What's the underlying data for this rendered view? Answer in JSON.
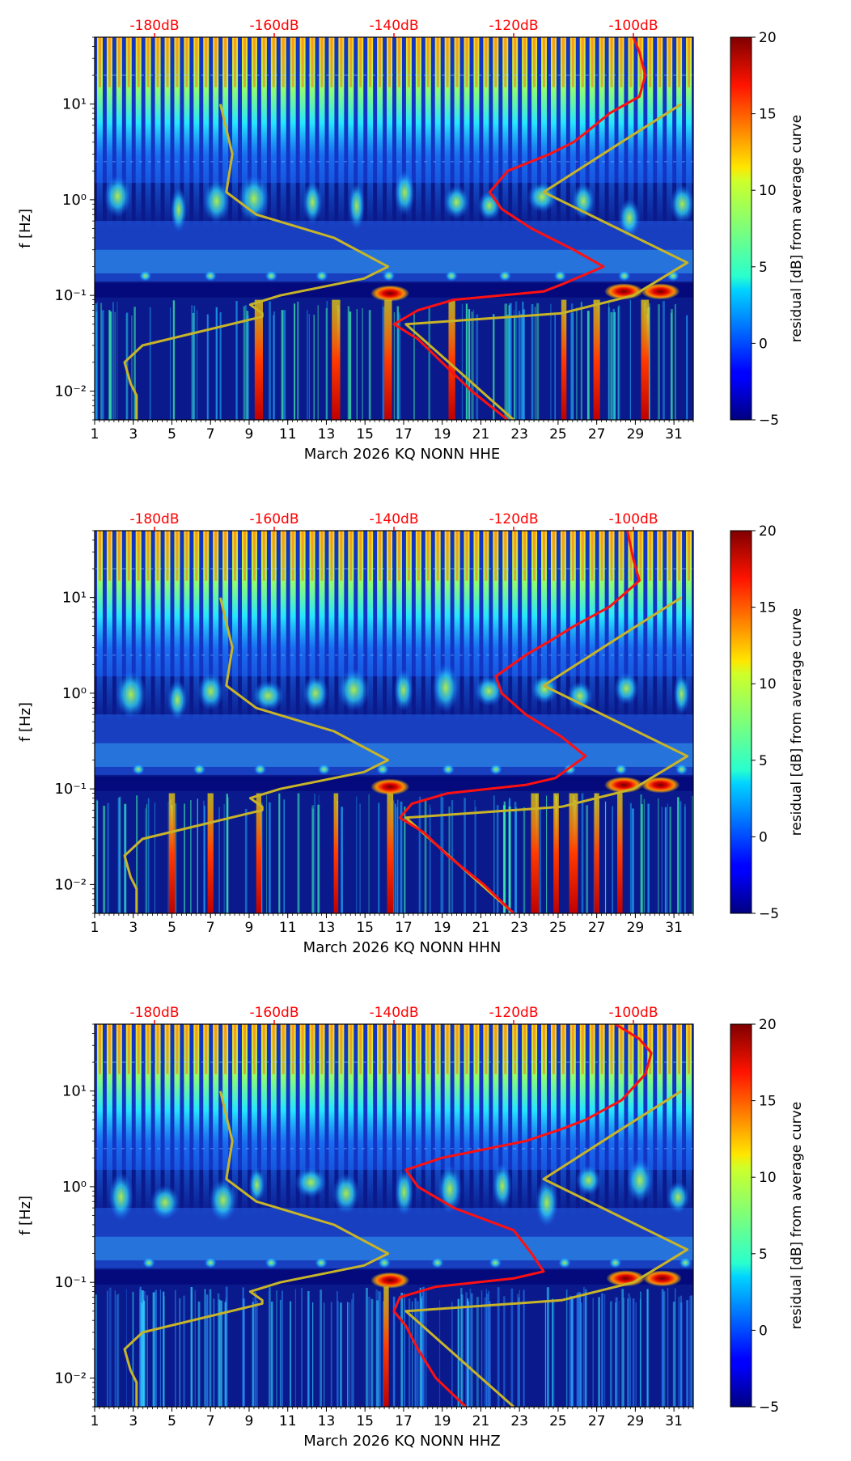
{
  "chart_data": [
    {
      "type": "heatmap",
      "title": "",
      "xlabel": "March 2026 KQ NONN  HHE",
      "ylabel": "f [Hz]",
      "x_ticks": [
        "1",
        "3",
        "5",
        "7",
        "9",
        "11",
        "13",
        "15",
        "17",
        "19",
        "21",
        "23",
        "25",
        "27",
        "29",
        "31"
      ],
      "x_range_days": [
        1,
        32
      ],
      "y_range_hz": [
        0.005,
        50
      ],
      "y_ticks": [
        {
          "value": 0.01,
          "label": "10⁻²"
        },
        {
          "value": 0.1,
          "label": "10⁻¹"
        },
        {
          "value": 1,
          "label": "10⁰"
        },
        {
          "value": 10,
          "label": "10¹"
        }
      ],
      "top_axis_labels": [
        "-180dB",
        "-160dB",
        "-140dB",
        "-120dB",
        "-100dB"
      ],
      "top_axis_db_range": [
        -190,
        -90
      ],
      "colorbar": {
        "label": "residual [dB] from average curve",
        "range": [
          -5,
          20
        ],
        "ticks": [
          "−5",
          "0",
          "5",
          "10",
          "15",
          "20"
        ]
      },
      "low_noise_model": [
        [
          0.005,
          -183
        ],
        [
          0.009,
          -183
        ],
        [
          0.012,
          -184
        ],
        [
          0.02,
          -185
        ],
        [
          0.03,
          -182
        ],
        [
          0.06,
          -162
        ],
        [
          0.065,
          -162
        ],
        [
          0.08,
          -164
        ],
        [
          0.1,
          -159
        ],
        [
          0.15,
          -145
        ],
        [
          0.2,
          -141
        ],
        [
          0.4,
          -150
        ],
        [
          0.7,
          -163
        ],
        [
          1.2,
          -168
        ],
        [
          3,
          -167
        ],
        [
          10,
          -169
        ]
      ],
      "high_noise_model": [
        [
          0.005,
          -120
        ],
        [
          0.05,
          -138
        ],
        [
          0.065,
          -112
        ],
        [
          0.1,
          -100
        ],
        [
          0.22,
          -91
        ],
        [
          1.2,
          -115
        ],
        [
          4,
          -102
        ],
        [
          10,
          -92
        ]
      ],
      "mean_psd_curve": [
        [
          0.005,
          -121
        ],
        [
          0.01,
          -127
        ],
        [
          0.02,
          -132
        ],
        [
          0.035,
          -136
        ],
        [
          0.05,
          -140
        ],
        [
          0.07,
          -136
        ],
        [
          0.09,
          -130
        ],
        [
          0.11,
          -115
        ],
        [
          0.13,
          -112
        ],
        [
          0.2,
          -105
        ],
        [
          0.3,
          -110
        ],
        [
          0.5,
          -117
        ],
        [
          0.8,
          -122
        ],
        [
          1.2,
          -124
        ],
        [
          2,
          -121
        ],
        [
          3,
          -114
        ],
        [
          4,
          -110
        ],
        [
          5,
          -108
        ],
        [
          8,
          -104
        ],
        [
          12,
          -99
        ],
        [
          20,
          -98
        ],
        [
          35,
          -99
        ],
        [
          50,
          -100
        ]
      ],
      "bright_blobs": [
        {
          "day": 16.3,
          "freq_hz": 0.105
        },
        {
          "day": 28.4,
          "freq_hz": 0.11
        },
        {
          "day": 30.3,
          "freq_hz": 0.11
        }
      ],
      "strong_lf_days": [
        9.5,
        13.5,
        16.2,
        19.5,
        25.3,
        27,
        29.5
      ]
    },
    {
      "type": "heatmap",
      "title": "",
      "xlabel": "March 2026 KQ NONN  HHN",
      "ylabel": "f [Hz]",
      "x_ticks": [
        "1",
        "3",
        "5",
        "7",
        "9",
        "11",
        "13",
        "15",
        "17",
        "19",
        "21",
        "23",
        "25",
        "27",
        "29",
        "31"
      ],
      "x_range_days": [
        1,
        32
      ],
      "y_range_hz": [
        0.005,
        50
      ],
      "y_ticks": [
        {
          "value": 0.01,
          "label": "10⁻²"
        },
        {
          "value": 0.1,
          "label": "10⁻¹"
        },
        {
          "value": 1,
          "label": "10⁰"
        },
        {
          "value": 10,
          "label": "10¹"
        }
      ],
      "top_axis_labels": [
        "-180dB",
        "-160dB",
        "-140dB",
        "-120dB",
        "-100dB"
      ],
      "top_axis_db_range": [
        -190,
        -90
      ],
      "colorbar": {
        "label": "residual [dB] from average curve",
        "range": [
          -5,
          20
        ],
        "ticks": [
          "−5",
          "0",
          "5",
          "10",
          "15",
          "20"
        ]
      },
      "low_noise_model": [
        [
          0.005,
          -183
        ],
        [
          0.009,
          -183
        ],
        [
          0.012,
          -184
        ],
        [
          0.02,
          -185
        ],
        [
          0.03,
          -182
        ],
        [
          0.06,
          -162
        ],
        [
          0.065,
          -162
        ],
        [
          0.08,
          -164
        ],
        [
          0.1,
          -159
        ],
        [
          0.15,
          -145
        ],
        [
          0.2,
          -141
        ],
        [
          0.4,
          -150
        ],
        [
          0.7,
          -163
        ],
        [
          1.2,
          -168
        ],
        [
          3,
          -167
        ],
        [
          10,
          -169
        ]
      ],
      "high_noise_model": [
        [
          0.005,
          -120
        ],
        [
          0.05,
          -138
        ],
        [
          0.065,
          -112
        ],
        [
          0.1,
          -100
        ],
        [
          0.22,
          -91
        ],
        [
          1.2,
          -115
        ],
        [
          4,
          -102
        ],
        [
          10,
          -92
        ]
      ],
      "mean_psd_curve": [
        [
          0.005,
          -120
        ],
        [
          0.01,
          -125
        ],
        [
          0.02,
          -131
        ],
        [
          0.035,
          -135
        ],
        [
          0.05,
          -139
        ],
        [
          0.07,
          -137
        ],
        [
          0.09,
          -131
        ],
        [
          0.11,
          -118
        ],
        [
          0.13,
          -113
        ],
        [
          0.22,
          -108
        ],
        [
          0.35,
          -112
        ],
        [
          0.6,
          -118
        ],
        [
          1,
          -122
        ],
        [
          1.5,
          -123
        ],
        [
          2.5,
          -118
        ],
        [
          3.5,
          -114
        ],
        [
          5,
          -110
        ],
        [
          8,
          -104
        ],
        [
          15,
          -99
        ],
        [
          25,
          -100
        ],
        [
          50,
          -101
        ]
      ],
      "bright_blobs": [
        {
          "day": 16.3,
          "freq_hz": 0.105
        },
        {
          "day": 28.4,
          "freq_hz": 0.11
        },
        {
          "day": 30.3,
          "freq_hz": 0.11
        }
      ],
      "strong_lf_days": [
        5,
        7,
        9.5,
        13.5,
        16.3,
        23.8,
        24.9,
        25.8,
        27,
        28.2
      ]
    },
    {
      "type": "heatmap",
      "title": "",
      "xlabel": "March 2026 KQ NONN  HHZ",
      "ylabel": "f [Hz]",
      "x_ticks": [
        "1",
        "3",
        "5",
        "7",
        "9",
        "11",
        "13",
        "15",
        "17",
        "19",
        "21",
        "23",
        "25",
        "27",
        "29",
        "31"
      ],
      "x_range_days": [
        1,
        32
      ],
      "y_range_hz": [
        0.005,
        50
      ],
      "y_ticks": [
        {
          "value": 0.01,
          "label": "10⁻²"
        },
        {
          "value": 0.1,
          "label": "10⁻¹"
        },
        {
          "value": 1,
          "label": "10⁰"
        },
        {
          "value": 10,
          "label": "10¹"
        }
      ],
      "top_axis_labels": [
        "-180dB",
        "-160dB",
        "-140dB",
        "-120dB",
        "-100dB"
      ],
      "top_axis_db_range": [
        -190,
        -90
      ],
      "colorbar": {
        "label": "residual [dB] from average curve",
        "range": [
          -5,
          20
        ],
        "ticks": [
          "−5",
          "0",
          "5",
          "10",
          "15",
          "20"
        ]
      },
      "low_noise_model": [
        [
          0.005,
          -183
        ],
        [
          0.009,
          -183
        ],
        [
          0.012,
          -184
        ],
        [
          0.02,
          -185
        ],
        [
          0.03,
          -182
        ],
        [
          0.06,
          -162
        ],
        [
          0.065,
          -162
        ],
        [
          0.08,
          -164
        ],
        [
          0.1,
          -159
        ],
        [
          0.15,
          -145
        ],
        [
          0.2,
          -141
        ],
        [
          0.4,
          -150
        ],
        [
          0.7,
          -163
        ],
        [
          1.2,
          -168
        ],
        [
          3,
          -167
        ],
        [
          10,
          -169
        ]
      ],
      "high_noise_model": [
        [
          0.005,
          -120
        ],
        [
          0.05,
          -138
        ],
        [
          0.065,
          -112
        ],
        [
          0.1,
          -100
        ],
        [
          0.22,
          -91
        ],
        [
          1.2,
          -115
        ],
        [
          4,
          -102
        ],
        [
          10,
          -92
        ]
      ],
      "mean_psd_curve": [
        [
          0.005,
          -128
        ],
        [
          0.01,
          -133
        ],
        [
          0.02,
          -136
        ],
        [
          0.035,
          -138
        ],
        [
          0.05,
          -140
        ],
        [
          0.07,
          -139
        ],
        [
          0.09,
          -133
        ],
        [
          0.11,
          -120
        ],
        [
          0.13,
          -115
        ],
        [
          0.2,
          -117
        ],
        [
          0.35,
          -120
        ],
        [
          0.6,
          -130
        ],
        [
          1,
          -136
        ],
        [
          1.5,
          -138
        ],
        [
          2,
          -132
        ],
        [
          3,
          -118
        ],
        [
          4,
          -112
        ],
        [
          5,
          -108
        ],
        [
          8,
          -102
        ],
        [
          15,
          -98
        ],
        [
          25,
          -97
        ],
        [
          35,
          -99
        ],
        [
          50,
          -103
        ]
      ],
      "bright_blobs": [
        {
          "day": 16.3,
          "freq_hz": 0.105
        },
        {
          "day": 28.5,
          "freq_hz": 0.11
        },
        {
          "day": 30.4,
          "freq_hz": 0.11
        }
      ],
      "strong_lf_days": [
        16.1
      ]
    }
  ]
}
